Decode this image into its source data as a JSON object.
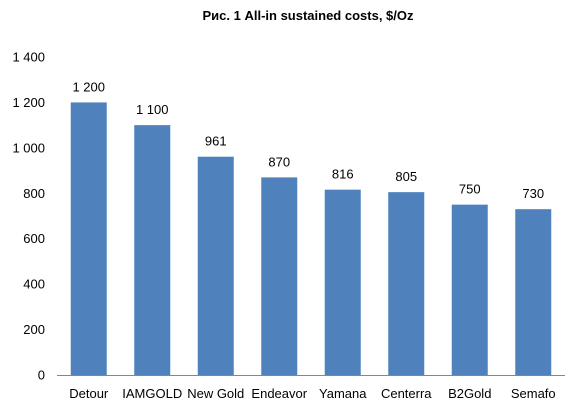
{
  "chart_data": {
    "type": "bar",
    "title": "Рис. 1 All-in sustained costs, $/Oz",
    "xlabel": "",
    "ylabel": "",
    "categories": [
      "Detour",
      "IAMGOLD",
      "New Gold",
      "Endeavor",
      "Yamana",
      "Centerra",
      "B2Gold",
      "Semafo"
    ],
    "values": [
      1200,
      1100,
      961,
      870,
      816,
      805,
      750,
      730
    ],
    "data_labels": [
      "1 200",
      "1 100",
      "961",
      "870",
      "816",
      "805",
      "750",
      "730"
    ],
    "ylim": [
      0,
      1400
    ],
    "yticks": [
      0,
      200,
      400,
      600,
      800,
      1000,
      1200,
      1400
    ],
    "ytick_labels": [
      "0",
      "200",
      "400",
      "600",
      "800",
      "1 000",
      "1 200",
      "1 400"
    ],
    "grid": false,
    "legend": "none",
    "colors": {
      "bar": "#4F81BD",
      "axis": "#868686",
      "text": "#000000"
    }
  }
}
